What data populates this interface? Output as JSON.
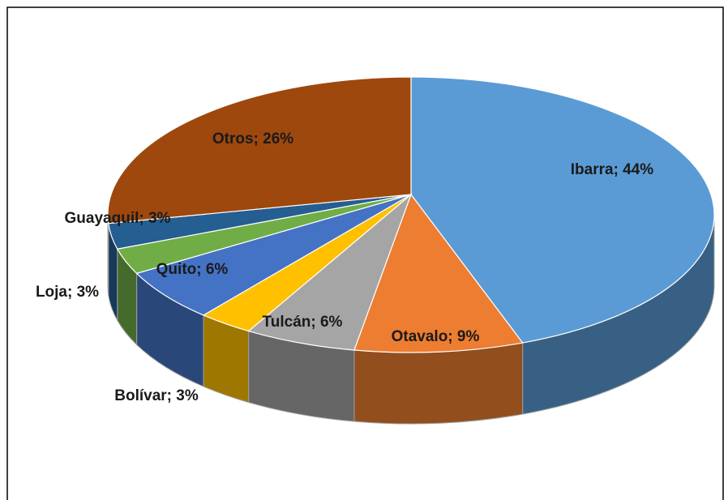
{
  "chart_data": {
    "type": "pie3d",
    "categories": [
      "Ibarra",
      "Otavalo",
      "Tulcán",
      "Bolívar",
      "Quito",
      "Loja",
      "Guayaquil",
      "Otros"
    ],
    "values": [
      44,
      9,
      6,
      3,
      6,
      3,
      3,
      26
    ],
    "value_labels": [
      "Ibarra; 44%",
      "Otavalo; 9%",
      "Tulcán; 6%",
      "Bolívar; 3%",
      "Quito; 6%",
      "Loja; 3%",
      "Guayaquil; 3%",
      "Otros; 26%"
    ],
    "colors": [
      "#5b9bd5",
      "#ed7d31",
      "#a5a5a5",
      "#ffc000",
      "#4472c4",
      "#70ad47",
      "#255e91",
      "#9e480e"
    ]
  }
}
